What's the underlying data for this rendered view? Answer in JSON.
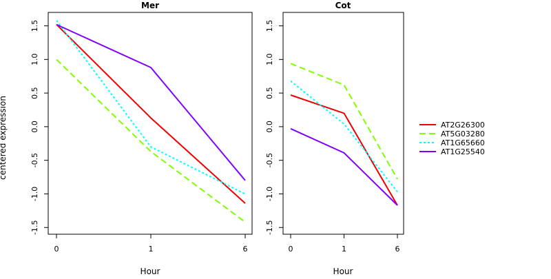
{
  "chart_data": {
    "type": "line",
    "ylabel": "centered expression",
    "xlabel": "Hour",
    "x_ticks": [
      "0",
      "1",
      "6"
    ],
    "y_ticks": [
      "-1.5",
      "-1.0",
      "-0.5",
      "0.0",
      "0.5",
      "1.0",
      "1.5"
    ],
    "ylim": [
      -1.6,
      1.7
    ],
    "grid": false,
    "legend_position": "right",
    "legend": [
      {
        "name": "AT2G26300",
        "color": "#ee0000",
        "dash": "solid"
      },
      {
        "name": "AT5G03280",
        "color": "#7fff00",
        "dash": "dashed"
      },
      {
        "name": "AT1G65660",
        "color": "#00ffff",
        "dash": "dotted"
      },
      {
        "name": "AT1G25540",
        "color": "#7f00ff",
        "dash": "solid"
      }
    ],
    "panels": [
      {
        "title": "Mer",
        "series": [
          {
            "name": "AT2G26300",
            "values": [
              1.52,
              0.13,
              -1.14
            ]
          },
          {
            "name": "AT5G03280",
            "values": [
              1.0,
              -0.37,
              -1.42
            ]
          },
          {
            "name": "AT1G65660",
            "values": [
              1.58,
              -0.3,
              -1.0
            ]
          },
          {
            "name": "AT1G25540",
            "values": [
              1.52,
              0.88,
              -0.8
            ]
          }
        ]
      },
      {
        "title": "Cot",
        "series": [
          {
            "name": "AT2G26300",
            "values": [
              0.47,
              0.2,
              -1.17
            ]
          },
          {
            "name": "AT5G03280",
            "values": [
              0.94,
              0.62,
              -0.78
            ]
          },
          {
            "name": "AT1G65660",
            "values": [
              0.68,
              0.04,
              -0.97
            ]
          },
          {
            "name": "AT1G25540",
            "values": [
              -0.03,
              -0.39,
              -1.17
            ]
          }
        ]
      }
    ]
  }
}
